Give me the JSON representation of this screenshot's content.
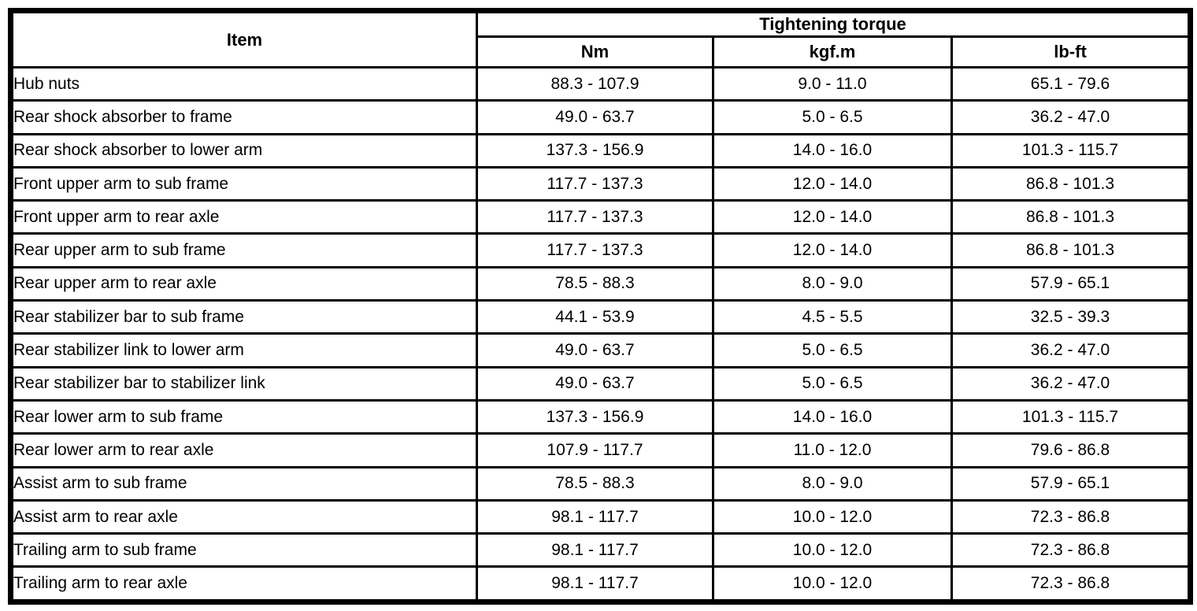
{
  "table": {
    "item_header": "Item",
    "group_header": "Tightening torque",
    "unit_headers": [
      "Nm",
      "kgf.m",
      "lb-ft"
    ],
    "rows": [
      {
        "item": "Hub nuts",
        "nm": "88.3 - 107.9",
        "kgfm": "9.0 - 11.0",
        "lbft": "65.1 - 79.6"
      },
      {
        "item": "Rear shock absorber to frame",
        "nm": "49.0 - 63.7",
        "kgfm": "5.0 - 6.5",
        "lbft": "36.2 - 47.0"
      },
      {
        "item": "Rear shock absorber to lower arm",
        "nm": "137.3 - 156.9",
        "kgfm": "14.0 - 16.0",
        "lbft": "101.3 - 115.7"
      },
      {
        "item": "Front upper arm to sub frame",
        "nm": "117.7 - 137.3",
        "kgfm": "12.0 - 14.0",
        "lbft": "86.8 - 101.3"
      },
      {
        "item": "Front upper arm to rear axle",
        "nm": "117.7 - 137.3",
        "kgfm": "12.0 - 14.0",
        "lbft": "86.8 - 101.3"
      },
      {
        "item": "Rear upper arm to sub frame",
        "nm": "117.7 - 137.3",
        "kgfm": "12.0 - 14.0",
        "lbft": "86.8 - 101.3"
      },
      {
        "item": "Rear upper arm to rear axle",
        "nm": "78.5 - 88.3",
        "kgfm": "8.0 - 9.0",
        "lbft": "57.9 - 65.1"
      },
      {
        "item": "Rear stabilizer bar to sub frame",
        "nm": "44.1 - 53.9",
        "kgfm": "4.5 - 5.5",
        "lbft": "32.5 - 39.3"
      },
      {
        "item": "Rear stabilizer link to lower arm",
        "nm": "49.0 - 63.7",
        "kgfm": "5.0 - 6.5",
        "lbft": "36.2 - 47.0"
      },
      {
        "item": "Rear stabilizer bar to stabilizer link",
        "nm": "49.0 - 63.7",
        "kgfm": "5.0 - 6.5",
        "lbft": "36.2 - 47.0"
      },
      {
        "item": "Rear lower arm to sub frame",
        "nm": "137.3 - 156.9",
        "kgfm": "14.0 - 16.0",
        "lbft": "101.3 - 115.7"
      },
      {
        "item": "Rear lower arm to rear axle",
        "nm": "107.9 - 117.7",
        "kgfm": "11.0 - 12.0",
        "lbft": "79.6 - 86.8"
      },
      {
        "item": "Assist arm to sub frame",
        "nm": "78.5 - 88.3",
        "kgfm": "8.0 - 9.0",
        "lbft": "57.9 - 65.1"
      },
      {
        "item": "Assist arm to rear axle",
        "nm": "98.1 - 117.7",
        "kgfm": "10.0 - 12.0",
        "lbft": "72.3 - 86.8"
      },
      {
        "item": "Trailing arm to sub frame",
        "nm": "98.1 - 117.7",
        "kgfm": "10.0 - 12.0",
        "lbft": "72.3 - 86.8"
      },
      {
        "item": "Trailing arm to rear axle",
        "nm": "98.1 - 117.7",
        "kgfm": "10.0 - 12.0",
        "lbft": "72.3 - 86.8"
      }
    ]
  }
}
